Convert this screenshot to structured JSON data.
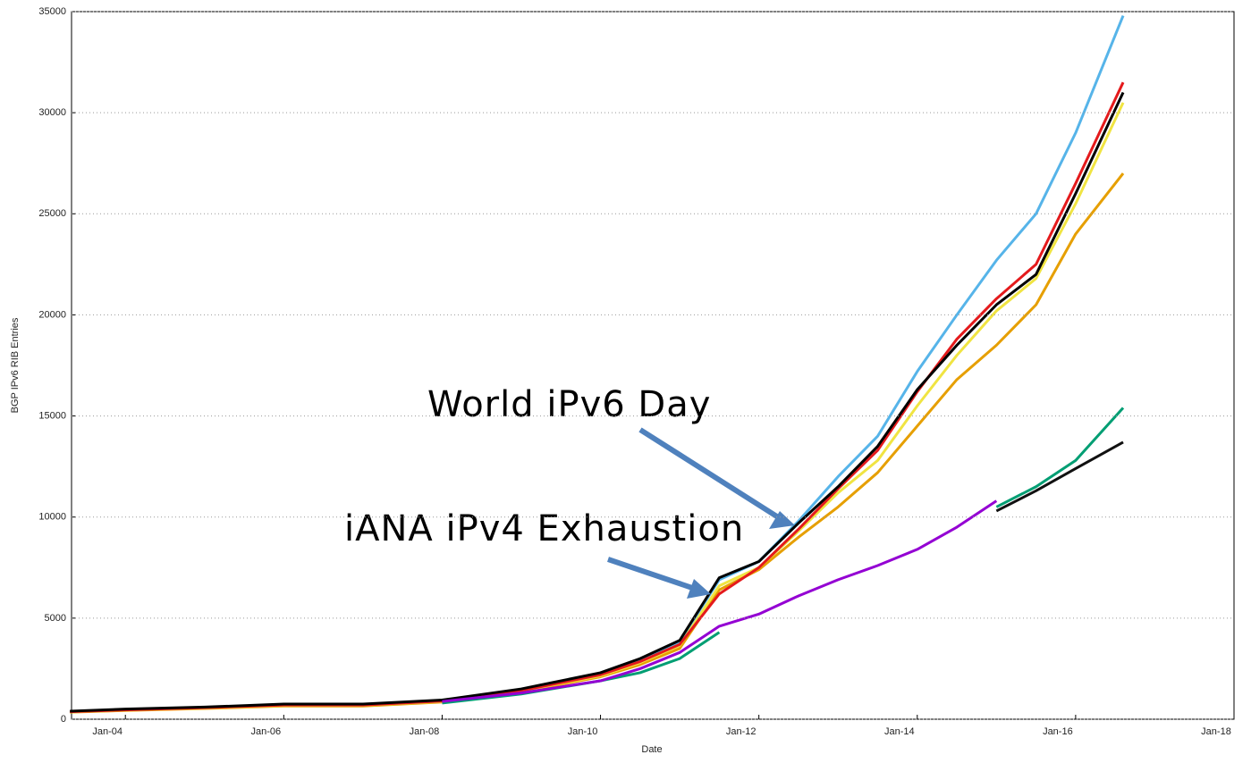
{
  "chart_data": {
    "type": "line",
    "x_label": "Date",
    "y_label": "BGP IPv6 RIB Entries",
    "annotations": [
      "World iPv6 Day",
      "iANA iPv4 Exhaustion"
    ],
    "x": [
      2003.3,
      2004,
      2005,
      2006,
      2007,
      2008,
      2009,
      2010,
      2010.5,
      2011,
      2011.5,
      2012,
      2012.5,
      2013,
      2013.5,
      2014,
      2014.5,
      2015,
      2015.5,
      2016,
      2016.6
    ],
    "xlim": [
      2003.32,
      2018.0
    ],
    "xticks": [
      {
        "value": 2004,
        "label": "Jan-04"
      },
      {
        "value": 2006,
        "label": "Jan-06"
      },
      {
        "value": 2008,
        "label": "Jan-08"
      },
      {
        "value": 2010,
        "label": "Jan-10"
      },
      {
        "value": 2012,
        "label": "Jan-12"
      },
      {
        "value": 2014,
        "label": "Jan-14"
      },
      {
        "value": 2016,
        "label": "Jan-16"
      },
      {
        "value": 2018,
        "label": "Jan-18"
      }
    ],
    "ylim": [
      0,
      35000
    ],
    "yticks": [
      0,
      5000,
      10000,
      15000,
      20000,
      25000,
      30000,
      35000
    ],
    "grid": true,
    "series": [
      {
        "color": "#56b4e9",
        "values": [
          380,
          480,
          580,
          720,
          720,
          920,
          1450,
          2250,
          2950,
          3850,
          6900,
          7800,
          9800,
          12000,
          14000,
          17200,
          20000,
          22700,
          25000,
          29000,
          34800
        ]
      },
      {
        "color": "#e69f00",
        "values": [
          350,
          430,
          530,
          650,
          650,
          850,
          1350,
          2100,
          2700,
          3500,
          6400,
          7400,
          9000,
          10500,
          12200,
          14500,
          16800,
          18500,
          20500,
          24000,
          27000
        ]
      },
      {
        "color": "#f0e442",
        "values": [
          360,
          450,
          550,
          680,
          690,
          880,
          1400,
          2150,
          2800,
          3650,
          6600,
          7500,
          9300,
          11200,
          12800,
          15500,
          18000,
          20200,
          21800,
          25500,
          30500
        ]
      },
      {
        "color": "#e41a1c",
        "values": [
          370,
          460,
          570,
          700,
          700,
          900,
          1420,
          2200,
          2850,
          3700,
          6200,
          7500,
          9400,
          11400,
          13300,
          16200,
          18800,
          20800,
          22500,
          26500,
          31500
        ]
      },
      {
        "color": "#000000",
        "values": [
          400,
          500,
          600,
          750,
          750,
          950,
          1500,
          2300,
          3000,
          3900,
          7000,
          7800,
          9700,
          11500,
          13500,
          16300,
          18500,
          20500,
          22000,
          26000,
          31000
        ]
      },
      {
        "color": "#009e73",
        "values": [
          null,
          null,
          null,
          null,
          null,
          800,
          1250,
          1900,
          2300,
          3000,
          4300,
          null,
          null,
          null,
          null,
          null,
          null,
          10500,
          11500,
          12800,
          15400
        ]
      },
      {
        "color": "#9400d3",
        "values": [
          null,
          null,
          null,
          null,
          null,
          880,
          1300,
          1900,
          2500,
          3300,
          4600,
          5200,
          6100,
          6900,
          7600,
          8400,
          9500,
          10800,
          null,
          null,
          null
        ]
      },
      {
        "color": "#111111",
        "values": [
          null,
          null,
          null,
          null,
          null,
          null,
          null,
          null,
          null,
          null,
          null,
          null,
          null,
          null,
          null,
          null,
          null,
          10300,
          11300,
          12400,
          13700
        ]
      }
    ]
  }
}
